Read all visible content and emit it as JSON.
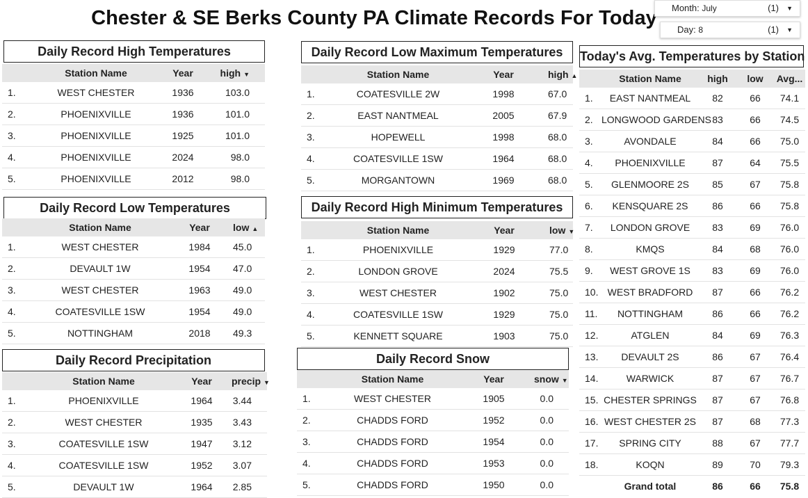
{
  "title": "Chester & SE Berks County PA Climate Records For Today",
  "filters": {
    "month": {
      "label": "Month",
      "value": "July",
      "count": "(1)"
    },
    "day": {
      "label": "Day",
      "value": "8",
      "count": "(1)"
    }
  },
  "record_high": {
    "title": "Daily Record High Temperatures",
    "headers": [
      "Station Name",
      "Year",
      "high"
    ],
    "sort": "▼",
    "rows": [
      [
        "1.",
        "WEST CHESTER",
        "1936",
        "103.0"
      ],
      [
        "2.",
        "PHOENIXVILLE",
        "1936",
        "101.0"
      ],
      [
        "3.",
        "PHOENIXVILLE",
        "1925",
        "101.0"
      ],
      [
        "4.",
        "PHOENIXVILLE",
        "2024",
        "98.0"
      ],
      [
        "5.",
        "PHOENIXVILLE",
        "2012",
        "98.0"
      ]
    ]
  },
  "record_low": {
    "title": "Daily Record Low Temperatures",
    "headers": [
      "Station Name",
      "Year",
      "low"
    ],
    "sort": "▲",
    "rows": [
      [
        "1.",
        "WEST CHESTER",
        "1984",
        "45.0"
      ],
      [
        "2.",
        "DEVAULT 1W",
        "1954",
        "47.0"
      ],
      [
        "3.",
        "WEST CHESTER",
        "1963",
        "49.0"
      ],
      [
        "4.",
        "COATESVILLE 1SW",
        "1954",
        "49.0"
      ],
      [
        "5.",
        "NOTTINGHAM",
        "2018",
        "49.3"
      ]
    ]
  },
  "record_precip": {
    "title": "Daily Record Precipitation",
    "headers": [
      "Station Name",
      "Year",
      "precip"
    ],
    "sort": "▼",
    "rows": [
      [
        "1.",
        "PHOENIXVILLE",
        "1964",
        "3.44"
      ],
      [
        "2.",
        "WEST CHESTER",
        "1935",
        "3.43"
      ],
      [
        "3.",
        "COATESVILLE 1SW",
        "1947",
        "3.12"
      ],
      [
        "4.",
        "COATESVILLE 1SW",
        "1952",
        "3.07"
      ],
      [
        "5.",
        "DEVAULT 1W",
        "1964",
        "2.85"
      ]
    ]
  },
  "record_low_max": {
    "title": "Daily Record Low Maximum Temperatures",
    "headers": [
      "Station Name",
      "Year",
      "high"
    ],
    "sort": "▲",
    "rows": [
      [
        "1.",
        "COATESVILLE 2W",
        "1998",
        "67.0"
      ],
      [
        "2.",
        "EAST NANTMEAL",
        "2005",
        "67.9"
      ],
      [
        "3.",
        "HOPEWELL",
        "1998",
        "68.0"
      ],
      [
        "4.",
        "COATESVILLE 1SW",
        "1964",
        "68.0"
      ],
      [
        "5.",
        "MORGANTOWN",
        "1969",
        "68.0"
      ]
    ]
  },
  "record_high_min": {
    "title": "Daily Record High Minimum Temperatures",
    "headers": [
      "Station Name",
      "Year",
      "low"
    ],
    "sort": "▼",
    "rows": [
      [
        "1.",
        "PHOENIXVILLE",
        "1929",
        "77.0"
      ],
      [
        "2.",
        "LONDON GROVE",
        "2024",
        "75.5"
      ],
      [
        "3.",
        "WEST CHESTER",
        "1902",
        "75.0"
      ],
      [
        "4.",
        "COATESVILLE 1SW",
        "1929",
        "75.0"
      ],
      [
        "5.",
        "KENNETT SQUARE",
        "1903",
        "75.0"
      ]
    ]
  },
  "record_snow": {
    "title": "Daily Record Snow",
    "headers": [
      "Station Name",
      "Year",
      "snow"
    ],
    "sort": "▼",
    "rows": [
      [
        "1.",
        "WEST CHESTER",
        "1905",
        "0.0"
      ],
      [
        "2.",
        "CHADDS FORD",
        "1952",
        "0.0"
      ],
      [
        "3.",
        "CHADDS FORD",
        "1954",
        "0.0"
      ],
      [
        "4.",
        "CHADDS FORD",
        "1953",
        "0.0"
      ],
      [
        "5.",
        "CHADDS FORD",
        "1950",
        "0.0"
      ]
    ]
  },
  "avg_temps": {
    "title": "Today's Avg. Temperatures by Station",
    "headers": [
      "Station Name",
      "high",
      "low",
      "Avg..."
    ],
    "rows": [
      [
        "1.",
        "EAST NANTMEAL",
        "82",
        "66",
        "74.1"
      ],
      [
        "2.",
        "LONGWOOD GARDENS",
        "83",
        "66",
        "74.5"
      ],
      [
        "3.",
        "AVONDALE",
        "84",
        "66",
        "75.0"
      ],
      [
        "4.",
        "PHOENIXVILLE",
        "87",
        "64",
        "75.5"
      ],
      [
        "5.",
        "GLENMOORE 2S",
        "85",
        "67",
        "75.8"
      ],
      [
        "6.",
        "KENSQUARE 2S",
        "86",
        "66",
        "75.8"
      ],
      [
        "7.",
        "LONDON GROVE",
        "83",
        "69",
        "76.0"
      ],
      [
        "8.",
        "KMQS",
        "84",
        "68",
        "76.0"
      ],
      [
        "9.",
        "WEST GROVE 1S",
        "83",
        "69",
        "76.0"
      ],
      [
        "10.",
        "WEST BRADFORD",
        "87",
        "66",
        "76.2"
      ],
      [
        "11.",
        "NOTTINGHAM",
        "86",
        "66",
        "76.2"
      ],
      [
        "12.",
        "ATGLEN",
        "84",
        "69",
        "76.3"
      ],
      [
        "13.",
        "DEVAULT 2S",
        "86",
        "67",
        "76.4"
      ],
      [
        "14.",
        "WARWICK",
        "87",
        "67",
        "76.7"
      ],
      [
        "15.",
        "CHESTER SPRINGS",
        "87",
        "67",
        "76.8"
      ],
      [
        "16.",
        "WEST CHESTER 2S",
        "87",
        "68",
        "77.3"
      ],
      [
        "17.",
        "SPRING CITY",
        "88",
        "67",
        "77.7"
      ],
      [
        "18.",
        "KOQN",
        "89",
        "70",
        "79.3"
      ]
    ],
    "total": [
      "Grand total",
      "86",
      "66",
      "75.8"
    ]
  }
}
